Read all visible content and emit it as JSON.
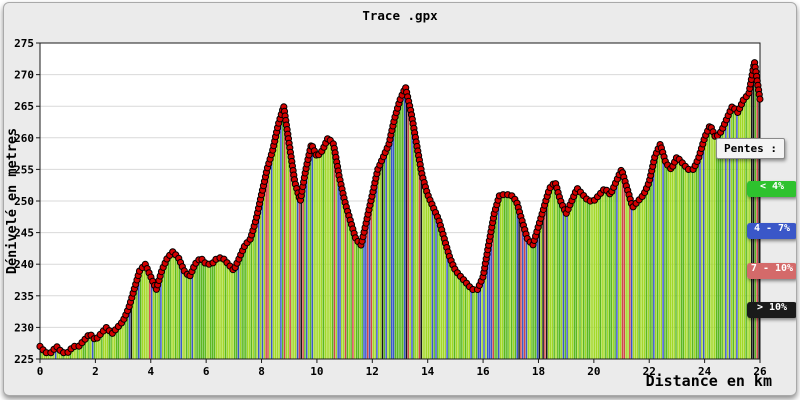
{
  "chart_data": {
    "type": "area",
    "title": "Trace .gpx",
    "xlabel": "Distance en km",
    "ylabel": "Dénivelé en metres",
    "xlim": [
      0,
      26
    ],
    "ylim": [
      225,
      275
    ],
    "xticks": [
      0,
      2,
      4,
      6,
      8,
      10,
      12,
      14,
      16,
      18,
      20,
      22,
      24,
      26
    ],
    "yticks": [
      225,
      230,
      235,
      240,
      245,
      250,
      255,
      260,
      265,
      270,
      275
    ],
    "grid": "horizontal",
    "x_step": 0.2,
    "elevations": [
      227,
      226,
      226,
      227,
      226,
      226,
      227,
      227,
      228,
      229,
      228,
      229,
      230,
      229,
      230,
      231,
      233,
      236,
      239,
      240,
      238,
      236,
      239,
      241,
      242,
      241,
      239,
      238,
      240,
      241,
      240,
      240,
      241,
      241,
      240,
      239,
      241,
      243,
      244,
      247,
      251,
      255,
      258,
      262,
      265,
      259,
      253,
      250,
      255,
      259,
      257,
      258,
      260,
      259,
      254,
      250,
      247,
      244,
      243,
      247,
      251,
      255,
      257,
      259,
      263,
      266,
      268,
      264,
      259,
      254,
      251,
      249,
      247,
      244,
      241,
      239,
      238,
      237,
      236,
      236,
      238,
      243,
      248,
      251,
      251,
      251,
      250,
      247,
      244,
      243,
      246,
      249,
      252,
      253,
      250,
      248,
      250,
      252,
      251,
      250,
      250,
      251,
      252,
      251,
      253,
      255,
      252,
      249,
      250,
      251,
      253,
      257,
      259,
      256,
      255,
      257,
      256,
      255,
      255,
      257,
      260,
      262,
      260,
      261,
      263,
      265,
      264,
      266,
      267,
      272,
      266
    ],
    "palette": {
      "slope_lt4": [
        "#a2d827",
        "#5ab820"
      ],
      "slope_4_7": "#3a57c8",
      "slope_7_10": "#d04848",
      "slope_gt10": "#151515",
      "marker_fill": "#d40000",
      "marker_stroke": "#000000",
      "grid": "#d9d9d9"
    },
    "legend": {
      "title": "Pentes :",
      "position": "right",
      "items": [
        {
          "label": "< 4%",
          "color": "#2ec22e"
        },
        {
          "label": "4 - 7%",
          "color": "#3a57c8"
        },
        {
          "label": "7 - 10%",
          "color": "#d46a6a"
        },
        {
          "label": "> 10%",
          "color": "#1a1a1a"
        }
      ]
    }
  }
}
